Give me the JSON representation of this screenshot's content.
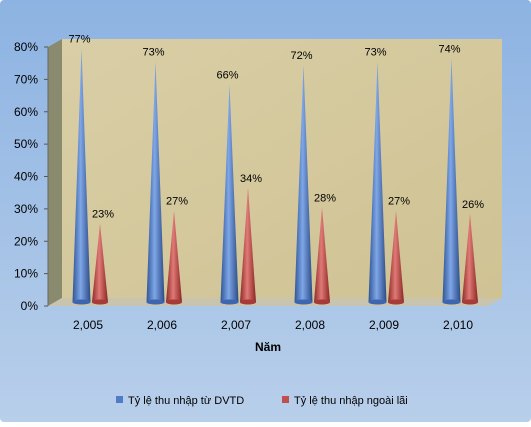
{
  "chart_data": {
    "type": "bar",
    "categories": [
      "2,005",
      "2,006",
      "2,007",
      "2,008",
      "2,009",
      "2,010"
    ],
    "series": [
      {
        "name": "Tỷ lệ thu nhập từ DVTD",
        "values": [
          77,
          73,
          66,
          72,
          73,
          74
        ],
        "labels": [
          "77%",
          "73%",
          "66%",
          "72%",
          "73%",
          "74%"
        ],
        "color": "#4F7BC8"
      },
      {
        "name": "Tỷ lệ thu nhập ngoài lãi",
        "values": [
          23,
          27,
          34,
          28,
          27,
          26
        ],
        "labels": [
          "23%",
          "27%",
          "34%",
          "28%",
          "27%",
          "26%"
        ],
        "color": "#C0504D"
      }
    ],
    "xlabel": "Năm",
    "ylabel": "",
    "ylim": [
      0,
      80
    ],
    "yticks": [
      "0%",
      "10%",
      "20%",
      "30%",
      "40%",
      "50%",
      "60%",
      "70%",
      "80%"
    ],
    "legend_position": "bottom",
    "grid": false,
    "mark_shape": "cone",
    "background_color": "#8EB4E3",
    "plot_wall_color": "#D7CBA0"
  }
}
